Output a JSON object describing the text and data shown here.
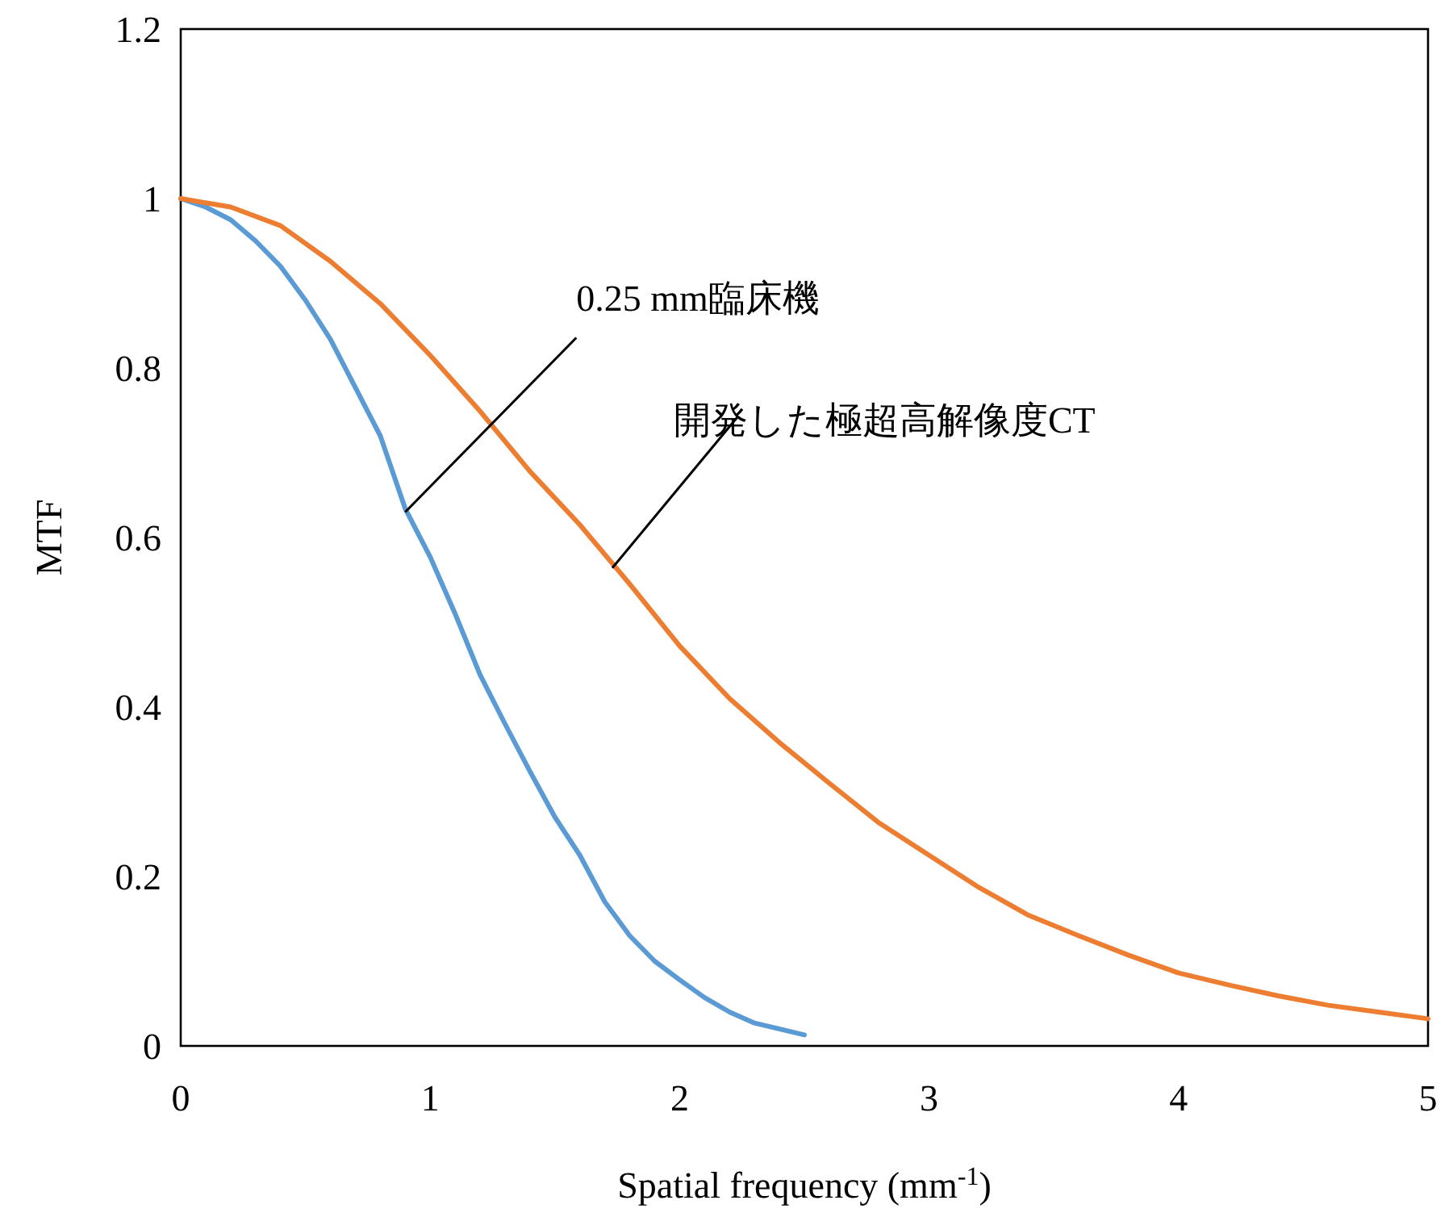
{
  "chart_data": {
    "type": "line",
    "xlabel": "Spatial frequency (mm$^{-1}$)",
    "ylabel": "MTF",
    "xlim": [
      0,
      5
    ],
    "ylim": [
      0,
      1.2
    ],
    "xticks": [
      0,
      1,
      2,
      3,
      4,
      5
    ],
    "yticks": [
      0,
      0.2,
      0.4,
      0.6,
      0.8,
      1,
      1.2
    ],
    "series": [
      {
        "color": "#5b9bd5",
        "x": [
          0,
          0.1,
          0.2,
          0.3,
          0.4,
          0.5,
          0.6,
          0.7,
          0.8,
          0.9,
          1,
          1.1,
          1.2,
          1.3,
          1.4,
          1.5,
          1.6,
          1.7,
          1.8,
          1.9,
          2,
          2.1,
          2.2,
          2.3,
          2.5
        ],
        "values": [
          1,
          0.99,
          0.975,
          0.95,
          0.92,
          0.88,
          0.834,
          0.777,
          0.72,
          0.634,
          0.577,
          0.51,
          0.438,
          0.38,
          0.324,
          0.27,
          0.225,
          0.17,
          0.13,
          0.1,
          0.078,
          0.057,
          0.04,
          0.027,
          0.013
        ]
      },
      {
        "color": "#ed7d31",
        "x": [
          0,
          0.2,
          0.4,
          0.6,
          0.8,
          1,
          1.2,
          1.4,
          1.6,
          1.8,
          2,
          2.2,
          2.4,
          2.6,
          2.8,
          3,
          3.2,
          3.4,
          3.6,
          3.8,
          4,
          4.2,
          4.4,
          4.6,
          4.8,
          5
        ],
        "values": [
          1,
          0.99,
          0.968,
          0.926,
          0.876,
          0.815,
          0.749,
          0.678,
          0.615,
          0.545,
          0.472,
          0.41,
          0.358,
          0.31,
          0.263,
          0.225,
          0.187,
          0.154,
          0.13,
          0.107,
          0.086,
          0.072,
          0.059,
          0.048,
          0.04,
          0.032
        ]
      }
    ],
    "annotations": [
      {
        "text": "0.25 mm臨床機",
        "x": 0.9,
        "y": 0.63
      },
      {
        "text": "開発した極超高解像度CT",
        "x": 1.73,
        "y": 0.564
      }
    ]
  }
}
